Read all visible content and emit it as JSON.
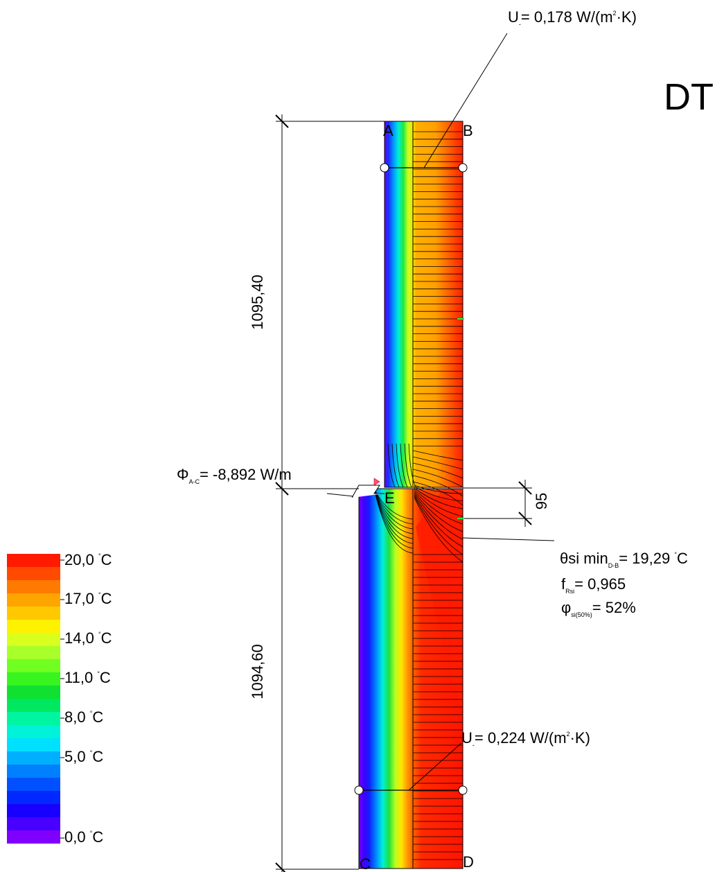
{
  "title": "DT",
  "points": {
    "a": "A",
    "b": "B",
    "c": "C",
    "d": "D",
    "e": "E"
  },
  "dimensions": {
    "upper": "1095,40",
    "lower": "1094,60",
    "offset": "95"
  },
  "u_upper": {
    "prefix": "U",
    "sub": "-",
    "value": "= 0,178 W/(m",
    "exp": "2",
    "tail": "·K)"
  },
  "u_lower": {
    "prefix": "U",
    "sub": "-",
    "value": "= 0,224 W/(m",
    "exp": "2",
    "tail": "·K)"
  },
  "flux": {
    "symbol": "Φ",
    "sub": "A-C",
    "value": "= -8,892 W/m"
  },
  "theta": {
    "symbol": "θsi min",
    "sub": "D-B",
    "value": "= 19,29",
    "deg": "°",
    "unit": "C"
  },
  "frsi": {
    "symbol": "f",
    "sub": "Rsi",
    "value": "= 0,965"
  },
  "phi": {
    "symbol": "φ",
    "sub": "si(50%)",
    "value": "= 52%"
  },
  "legend": {
    "deg": "°",
    "labels": [
      "20,0",
      "17,0",
      "14,0",
      "11,0",
      "8,0",
      "5,0",
      "0,0"
    ],
    "unit": "C",
    "colors": [
      "#ff1a00",
      "#ff4a00",
      "#ff7a00",
      "#ffa500",
      "#ffc800",
      "#fff200",
      "#d8ff1e",
      "#a8ff2a",
      "#70ff20",
      "#38f520",
      "#10e030",
      "#00e860",
      "#00f5a0",
      "#00f2d8",
      "#00e0ff",
      "#00b0ff",
      "#0080ff",
      "#0050ff",
      "#0028ff",
      "#1800ff",
      "#4800ff",
      "#8000ff"
    ]
  }
}
